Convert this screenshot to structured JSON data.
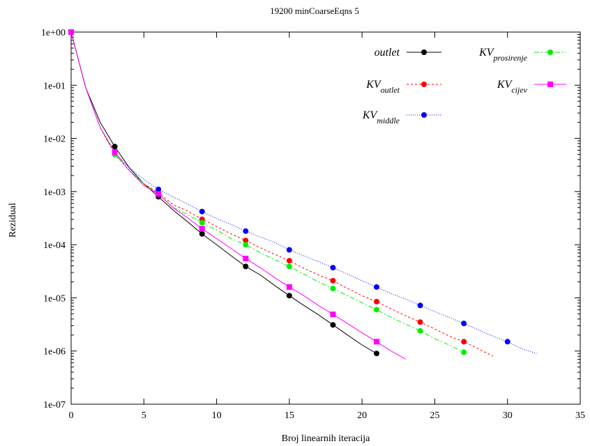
{
  "chart_data": {
    "type": "line",
    "title": "19200 minCoarseEqns 5",
    "xlabel": "Broj linearnih iteracija",
    "ylabel": "Rezidual",
    "xlim": [
      0,
      35
    ],
    "ylim_exponents": [
      -7,
      0
    ],
    "y_scale": "log",
    "x_ticks": [
      0,
      5,
      10,
      15,
      20,
      25,
      30,
      35
    ],
    "x_tick_labels": [
      "0",
      "5",
      "10",
      "15",
      "20",
      "25",
      "30",
      "35"
    ],
    "y_ticks": [
      1,
      0.1,
      0.01,
      0.001,
      0.0001,
      1e-05,
      1e-06,
      1e-07
    ],
    "y_tick_labels": [
      "1e+00",
      "1e-01",
      "1e-02",
      "1e-03",
      "1e-04",
      "1e-05",
      "1e-06",
      "1e-07"
    ],
    "grid": false,
    "legend_position": "top-right",
    "series": [
      {
        "key": "outlet",
        "name_main": "outlet",
        "name_sub": "",
        "color": "#000000",
        "dash": "",
        "marker": "circle",
        "x": [
          0,
          1,
          2,
          3,
          4,
          5,
          6,
          7,
          8,
          9,
          10,
          11,
          12,
          13,
          14,
          15,
          16,
          17,
          18,
          19,
          20,
          21
        ],
        "y": [
          1,
          0.09,
          0.02,
          0.007,
          0.0028,
          0.0014,
          0.0008,
          0.00045,
          0.00027,
          0.00016,
          0.0001,
          6.2e-05,
          3.9e-05,
          2.7e-05,
          1.7e-05,
          1.1e-05,
          7.2e-06,
          4.8e-06,
          3.1e-06,
          2e-06,
          1.3e-06,
          9e-07
        ],
        "marker_x": [
          0,
          3,
          6,
          9,
          12,
          15,
          18,
          21
        ],
        "marker_y": [
          1,
          0.007,
          0.0008,
          0.00016,
          3.9e-05,
          1.1e-05,
          3.1e-06,
          9e-07
        ]
      },
      {
        "key": "kv_outlet",
        "name_main": "KV",
        "name_sub": "outlet",
        "color": "#ff0000",
        "dash": "3,3",
        "marker": "circle",
        "x": [
          0,
          1,
          2,
          3,
          4,
          5,
          6,
          7,
          8,
          9,
          10,
          11,
          12,
          13,
          14,
          15,
          16,
          17,
          18,
          19,
          20,
          21,
          22,
          23,
          24,
          25,
          26,
          27,
          28,
          29
        ],
        "y": [
          1,
          0.09,
          0.016,
          0.005,
          0.0025,
          0.0014,
          0.00095,
          0.00057,
          0.00043,
          0.0003,
          0.00022,
          0.00016,
          0.00012,
          8.8e-05,
          6.6e-05,
          5e-05,
          3.6e-05,
          2.7e-05,
          2.1e-05,
          1.5e-05,
          1.1e-05,
          8.5e-06,
          6.2e-06,
          4.6e-06,
          3.5e-06,
          2.6e-06,
          1.9e-06,
          1.5e-06,
          1.1e-06,
          8e-07
        ],
        "marker_x": [
          0,
          3,
          6,
          9,
          12,
          15,
          18,
          21,
          24,
          27
        ],
        "marker_y": [
          1,
          0.005,
          0.00095,
          0.0003,
          0.00012,
          5e-05,
          2.1e-05,
          8.5e-06,
          3.5e-06,
          1.5e-06
        ]
      },
      {
        "key": "kv_middle",
        "name_main": "KV",
        "name_sub": "middle",
        "color": "#0000ff",
        "dash": "1,2",
        "marker": "circle",
        "x": [
          0,
          1,
          2,
          3,
          4,
          5,
          6,
          7,
          8,
          9,
          10,
          11,
          12,
          13,
          14,
          15,
          16,
          17,
          18,
          19,
          20,
          21,
          22,
          23,
          24,
          25,
          26,
          27,
          28,
          29,
          30,
          31,
          32
        ],
        "y": [
          1,
          0.09,
          0.016,
          0.0055,
          0.0028,
          0.0017,
          0.0011,
          0.0008,
          0.00058,
          0.00042,
          0.00031,
          0.00024,
          0.00018,
          0.00014,
          0.00011,
          8e-05,
          6.2e-05,
          4.8e-05,
          3.7e-05,
          2.8e-05,
          2.1e-05,
          1.6e-05,
          1.2e-05,
          9.5e-06,
          7.2e-06,
          5.5e-06,
          4.3e-06,
          3.3e-06,
          2.5e-06,
          1.9e-06,
          1.5e-06,
          1.1e-06,
          9e-07
        ],
        "marker_x": [
          0,
          3,
          6,
          9,
          12,
          15,
          18,
          21,
          24,
          27,
          30
        ],
        "marker_y": [
          1,
          0.0055,
          0.0011,
          0.00042,
          0.00018,
          8e-05,
          3.7e-05,
          1.6e-05,
          7.2e-06,
          3.3e-06,
          1.5e-06
        ]
      },
      {
        "key": "kv_prosirenje",
        "name_main": "KV",
        "name_sub": "prosirenje",
        "color": "#00ee00",
        "dash": "7,3,2,3",
        "marker": "circle",
        "x": [
          0,
          1,
          2,
          3,
          4,
          5,
          6,
          7,
          8,
          9,
          10,
          11,
          12,
          13,
          14,
          15,
          16,
          17,
          18,
          19,
          20,
          21,
          22,
          23,
          24,
          25,
          26,
          27
        ],
        "y": [
          1,
          0.09,
          0.016,
          0.005,
          0.0025,
          0.0014,
          0.0009,
          0.0005,
          0.00037,
          0.00026,
          0.00019,
          0.00013,
          0.0001,
          7.1e-05,
          5.2e-05,
          3.9e-05,
          2.8e-05,
          2e-05,
          1.5e-05,
          1.1e-05,
          8.1e-06,
          6e-06,
          4.3e-06,
          3.2e-06,
          2.4e-06,
          1.7e-06,
          1.3e-06,
          9.5e-07
        ],
        "marker_x": [
          0,
          3,
          6,
          9,
          12,
          15,
          18,
          21,
          24,
          27
        ],
        "marker_y": [
          1,
          0.005,
          0.0009,
          0.00026,
          0.0001,
          3.9e-05,
          1.5e-05,
          6e-06,
          2.4e-06,
          9.5e-07
        ]
      },
      {
        "key": "kv_cijev",
        "name_main": "KV",
        "name_sub": "cijev",
        "color": "#ff00ff",
        "dash": "",
        "marker": "square",
        "x": [
          0,
          1,
          2,
          3,
          4,
          5,
          6,
          7,
          8,
          9,
          10,
          11,
          12,
          13,
          14,
          15,
          16,
          17,
          18,
          19,
          20,
          21,
          22,
          23
        ],
        "y": [
          1,
          0.09,
          0.016,
          0.0055,
          0.0025,
          0.0013,
          0.0009,
          0.0005,
          0.00032,
          0.0002,
          0.00013,
          8.5e-05,
          5.5e-05,
          3.7e-05,
          2.4e-05,
          1.6e-05,
          1.1e-05,
          7.2e-06,
          4.9e-06,
          3.3e-06,
          2.2e-06,
          1.5e-06,
          1e-06,
          7e-07
        ],
        "marker_x": [
          0,
          3,
          6,
          9,
          12,
          15,
          18,
          21
        ],
        "marker_y": [
          1,
          0.0055,
          0.0009,
          0.0002,
          5.5e-05,
          1.6e-05,
          4.9e-06,
          1.5e-06
        ]
      }
    ]
  }
}
